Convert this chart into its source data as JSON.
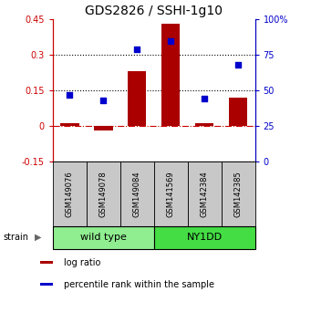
{
  "title": "GDS2826 / SSHI-1g10",
  "categories": [
    "GSM149076",
    "GSM149078",
    "GSM149084",
    "GSM141569",
    "GSM142384",
    "GSM142385"
  ],
  "log_ratios": [
    0.01,
    -0.02,
    0.23,
    0.43,
    0.01,
    0.12
  ],
  "percentile_ranks": [
    47,
    43,
    79,
    85,
    44,
    68
  ],
  "groups": [
    {
      "label": "wild type",
      "indices": [
        0,
        1,
        2
      ],
      "color": "#90EE90"
    },
    {
      "label": "NY1DD",
      "indices": [
        3,
        4,
        5
      ],
      "color": "#44DD44"
    }
  ],
  "bar_color": "#AA0000",
  "dot_color": "#0000CC",
  "ylim_left": [
    -0.15,
    0.45
  ],
  "ylim_right": [
    0,
    100
  ],
  "yticks_left": [
    -0.15,
    0.0,
    0.15,
    0.3,
    0.45
  ],
  "yticks_right": [
    0,
    25,
    50,
    75,
    100
  ],
  "ytick_labels_left": [
    "-0.15",
    "0",
    "0.15",
    "0.3",
    "0.45"
  ],
  "ytick_labels_right": [
    "0",
    "25",
    "50",
    "75",
    "100%"
  ],
  "hlines": [
    0.15,
    0.3
  ],
  "hline_zero_color": "#CC0000",
  "hline_dotted_color": "#000000",
  "strain_label": "strain",
  "legend_items": [
    {
      "label": "log ratio",
      "color": "#AA0000"
    },
    {
      "label": "percentile rank within the sample",
      "color": "#0000CC"
    }
  ],
  "bar_width": 0.55,
  "title_fontsize": 10,
  "tick_fontsize": 7,
  "label_fontsize": 7,
  "group_label_fontsize": 8,
  "sample_label_fontsize": 6
}
